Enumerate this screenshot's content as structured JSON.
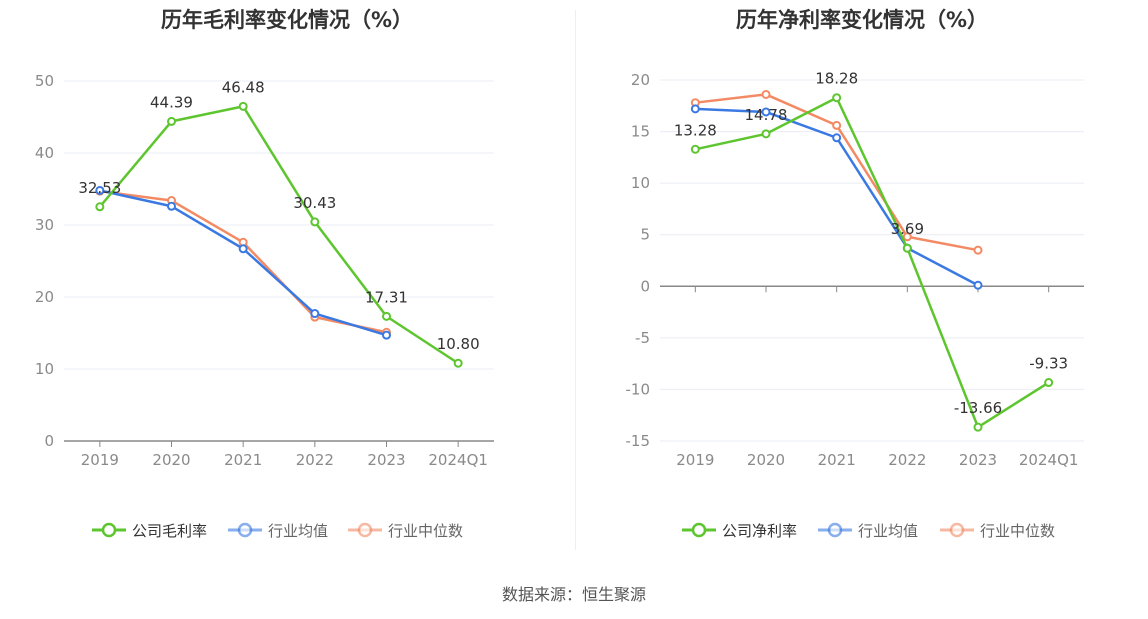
{
  "colors": {
    "company": "#5dc52e",
    "industry_avg": "#3b79e2",
    "industry_median": "#f38a64",
    "grid": "#e9ecf3",
    "axis": "#888888",
    "tick_text": "#8a8a8a",
    "label_text": "#333333"
  },
  "chart_data": [
    {
      "type": "line",
      "title": "历年毛利率变化情况（%）",
      "categories": [
        "2019",
        "2020",
        "2021",
        "2022",
        "2023",
        "2024Q1"
      ],
      "ylim": [
        0,
        50
      ],
      "yticks": [
        0,
        10,
        20,
        30,
        40,
        50
      ],
      "grid": true,
      "legend": "bottom-center",
      "series": [
        {
          "name": "公司毛利率",
          "key": "company",
          "values": [
            32.53,
            44.39,
            46.48,
            30.43,
            17.31,
            10.8
          ],
          "labels": [
            "32.53",
            "44.39",
            "46.48",
            "30.43",
            "17.31",
            "10.80"
          ]
        },
        {
          "name": "行业均值",
          "key": "industry_avg",
          "values": [
            34.8,
            32.6,
            26.7,
            17.7,
            14.7,
            null
          ]
        },
        {
          "name": "行业中位数",
          "key": "industry_median",
          "values": [
            34.7,
            33.4,
            27.6,
            17.2,
            15.1,
            null
          ]
        }
      ]
    },
    {
      "type": "line",
      "title": "历年净利率变化情况（%）",
      "categories": [
        "2019",
        "2020",
        "2021",
        "2022",
        "2023",
        "2024Q1"
      ],
      "ylim": [
        -15,
        20
      ],
      "yticks": [
        -15,
        -10,
        -5,
        0,
        5,
        10,
        15,
        20
      ],
      "grid": true,
      "legend": "bottom-center",
      "series": [
        {
          "name": "公司净利率",
          "key": "company",
          "values": [
            13.28,
            14.78,
            18.28,
            3.69,
            -13.66,
            -9.33
          ],
          "labels": [
            "13.28",
            "14.78",
            "18.28",
            "3.69",
            "-13.66",
            "-9.33"
          ]
        },
        {
          "name": "行业均值",
          "key": "industry_avg",
          "values": [
            17.2,
            16.9,
            14.4,
            3.7,
            0.1,
            null
          ]
        },
        {
          "name": "行业中位数",
          "key": "industry_median",
          "values": [
            17.8,
            18.6,
            15.6,
            4.8,
            3.5,
            null
          ]
        }
      ]
    }
  ],
  "footer": {
    "source": "数据来源：恒生聚源"
  }
}
